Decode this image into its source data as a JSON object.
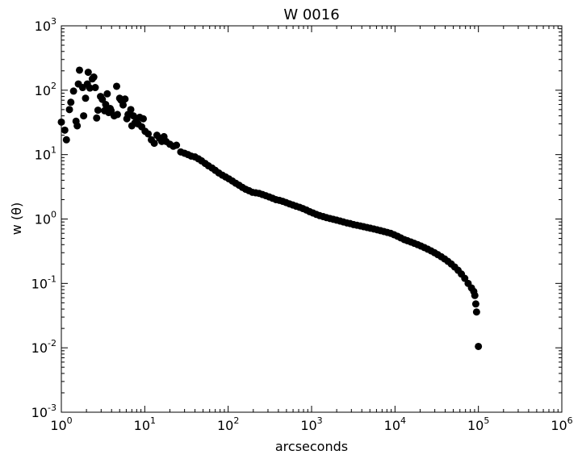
{
  "chart_data": {
    "type": "scatter",
    "title": "W 0016",
    "xlabel": "arcseconds",
    "ylabel": "w (θ)",
    "xscale": "log",
    "yscale": "log",
    "xlim": [
      1,
      1000000
    ],
    "ylim": [
      0.001,
      1000
    ],
    "grid": false,
    "legend": "none",
    "marker_color": "#000000",
    "x_ticks": [
      {
        "value": 1,
        "base": "10",
        "exp": "0"
      },
      {
        "value": 10,
        "base": "10",
        "exp": "1"
      },
      {
        "value": 100,
        "base": "10",
        "exp": "2"
      },
      {
        "value": 1000,
        "base": "10",
        "exp": "3"
      },
      {
        "value": 10000,
        "base": "10",
        "exp": "4"
      },
      {
        "value": 100000,
        "base": "10",
        "exp": "5"
      },
      {
        "value": 1000000,
        "base": "10",
        "exp": "6"
      }
    ],
    "y_ticks": [
      {
        "value": 0.001,
        "base": "10",
        "exp": "-3"
      },
      {
        "value": 0.01,
        "base": "10",
        "exp": "-2"
      },
      {
        "value": 0.1,
        "base": "10",
        "exp": "-1"
      },
      {
        "value": 1,
        "base": "10",
        "exp": "0"
      },
      {
        "value": 10,
        "base": "10",
        "exp": "1"
      },
      {
        "value": 100,
        "base": "10",
        "exp": "2"
      },
      {
        "value": 1000,
        "base": "10",
        "exp": "3"
      }
    ],
    "points": [
      [
        1.0,
        32
      ],
      [
        1.1,
        24
      ],
      [
        1.15,
        17
      ],
      [
        1.25,
        50
      ],
      [
        1.3,
        65
      ],
      [
        1.4,
        97
      ],
      [
        1.5,
        33
      ],
      [
        1.55,
        28
      ],
      [
        1.6,
        125
      ],
      [
        1.65,
        205
      ],
      [
        1.8,
        110
      ],
      [
        1.85,
        40
      ],
      [
        1.95,
        75
      ],
      [
        2.05,
        125
      ],
      [
        2.1,
        190
      ],
      [
        2.2,
        108
      ],
      [
        2.35,
        150
      ],
      [
        2.45,
        160
      ],
      [
        2.55,
        110
      ],
      [
        2.65,
        37
      ],
      [
        2.75,
        49
      ],
      [
        2.95,
        80
      ],
      [
        3.1,
        72
      ],
      [
        3.3,
        48
      ],
      [
        3.4,
        60
      ],
      [
        3.55,
        88
      ],
      [
        3.7,
        45
      ],
      [
        3.85,
        52
      ],
      [
        3.95,
        48
      ],
      [
        4.3,
        40
      ],
      [
        4.6,
        115
      ],
      [
        4.7,
        42
      ],
      [
        5.0,
        75
      ],
      [
        5.2,
        70
      ],
      [
        5.5,
        59
      ],
      [
        5.8,
        73
      ],
      [
        6.1,
        36
      ],
      [
        6.3,
        42
      ],
      [
        6.8,
        50
      ],
      [
        7.0,
        28
      ],
      [
        7.3,
        40
      ],
      [
        7.6,
        31
      ],
      [
        8.0,
        35
      ],
      [
        8.3,
        30
      ],
      [
        8.7,
        38
      ],
      [
        9.2,
        27
      ],
      [
        9.6,
        36
      ],
      [
        10.1,
        23
      ],
      [
        11,
        21
      ],
      [
        12,
        17
      ],
      [
        13,
        15
      ],
      [
        14,
        20
      ],
      [
        15,
        18
      ],
      [
        16,
        16
      ],
      [
        17,
        19
      ],
      [
        18,
        16
      ],
      [
        20,
        14.5
      ],
      [
        22,
        13.5
      ],
      [
        24,
        14
      ],
      [
        27,
        11
      ],
      [
        30,
        10.5
      ],
      [
        33,
        10
      ],
      [
        36,
        9.5
      ],
      [
        40,
        9.2
      ],
      [
        44,
        8.6
      ],
      [
        48,
        8
      ],
      [
        53,
        7.3
      ],
      [
        58,
        6.7
      ],
      [
        64,
        6.2
      ],
      [
        70,
        5.7
      ],
      [
        77,
        5.2
      ],
      [
        85,
        4.8
      ],
      [
        93,
        4.5
      ],
      [
        102,
        4.2
      ],
      [
        112,
        3.9
      ],
      [
        123,
        3.6
      ],
      [
        135,
        3.35
      ],
      [
        148,
        3.1
      ],
      [
        162,
        2.9
      ],
      [
        178,
        2.75
      ],
      [
        195,
        2.6
      ],
      [
        214,
        2.55
      ],
      [
        235,
        2.5
      ],
      [
        258,
        2.4
      ],
      [
        283,
        2.3
      ],
      [
        311,
        2.2
      ],
      [
        341,
        2.1
      ],
      [
        374,
        2.0
      ],
      [
        411,
        1.95
      ],
      [
        451,
        1.88
      ],
      [
        495,
        1.8
      ],
      [
        543,
        1.72
      ],
      [
        596,
        1.65
      ],
      [
        654,
        1.58
      ],
      [
        718,
        1.52
      ],
      [
        788,
        1.45
      ],
      [
        865,
        1.38
      ],
      [
        950,
        1.3
      ],
      [
        1040,
        1.24
      ],
      [
        1140,
        1.18
      ],
      [
        1250,
        1.13
      ],
      [
        1380,
        1.09
      ],
      [
        1510,
        1.05
      ],
      [
        1660,
        1.02
      ],
      [
        1820,
        0.99
      ],
      [
        2000,
        0.96
      ],
      [
        2200,
        0.93
      ],
      [
        2410,
        0.9
      ],
      [
        2650,
        0.87
      ],
      [
        2900,
        0.85
      ],
      [
        3190,
        0.82
      ],
      [
        3500,
        0.8
      ],
      [
        3840,
        0.78
      ],
      [
        4210,
        0.76
      ],
      [
        4620,
        0.74
      ],
      [
        5070,
        0.72
      ],
      [
        5570,
        0.7
      ],
      [
        6110,
        0.68
      ],
      [
        6710,
        0.66
      ],
      [
        7360,
        0.64
      ],
      [
        8080,
        0.62
      ],
      [
        8870,
        0.6
      ],
      [
        9740,
        0.57
      ],
      [
        10700,
        0.54
      ],
      [
        11700,
        0.51
      ],
      [
        12900,
        0.48
      ],
      [
        14100,
        0.46
      ],
      [
        15500,
        0.44
      ],
      [
        17000,
        0.42
      ],
      [
        18700,
        0.4
      ],
      [
        20500,
        0.38
      ],
      [
        22500,
        0.36
      ],
      [
        24700,
        0.34
      ],
      [
        27100,
        0.32
      ],
      [
        29700,
        0.3
      ],
      [
        32600,
        0.28
      ],
      [
        35800,
        0.26
      ],
      [
        39300,
        0.24
      ],
      [
        43100,
        0.22
      ],
      [
        47300,
        0.2
      ],
      [
        51900,
        0.18
      ],
      [
        57000,
        0.16
      ],
      [
        62500,
        0.14
      ],
      [
        68600,
        0.12
      ],
      [
        75300,
        0.1
      ],
      [
        82600,
        0.085
      ],
      [
        88000,
        0.075
      ],
      [
        90600,
        0.065
      ],
      [
        93000,
        0.048
      ],
      [
        95000,
        0.036
      ],
      [
        100000,
        0.0105
      ]
    ]
  }
}
